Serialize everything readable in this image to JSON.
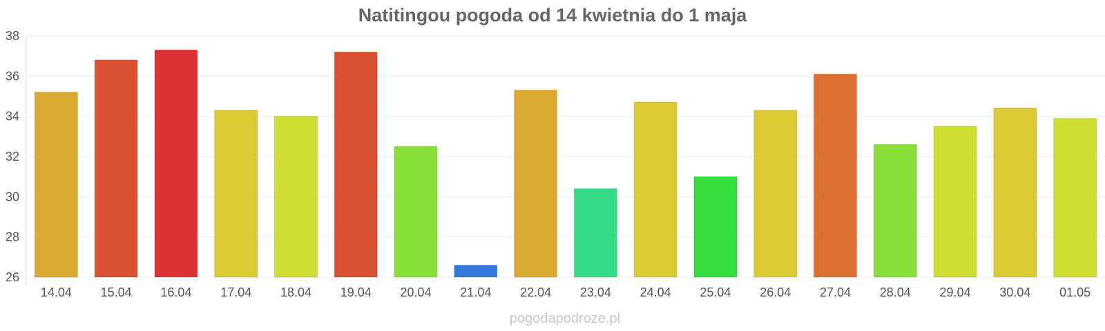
{
  "chart_data": {
    "type": "bar",
    "title": "Natitingou pogoda od 14 kwietnia do 1 maja",
    "xlabel": "",
    "ylabel": "",
    "ylim": [
      26,
      38
    ],
    "yticks": [
      "26",
      "28",
      "30",
      "32",
      "34",
      "36",
      "38"
    ],
    "categories": [
      "14.04",
      "15.04",
      "16.04",
      "17.04",
      "18.04",
      "19.04",
      "20.04",
      "21.04",
      "22.04",
      "23.04",
      "24.04",
      "25.04",
      "26.04",
      "27.04",
      "28.04",
      "29.04",
      "30.04",
      "01.05"
    ],
    "values": [
      35.2,
      36.8,
      37.3,
      34.3,
      34.0,
      37.2,
      32.5,
      26.6,
      35.3,
      30.4,
      34.7,
      31.0,
      34.3,
      36.1,
      32.6,
      33.5,
      34.4,
      33.9
    ],
    "colors": [
      "#dba834",
      "#dd5133",
      "#dc3233",
      "#dbc934",
      "#cddd33",
      "#dd5133",
      "#8ade38",
      "#3479dc",
      "#dba834",
      "#35dc88",
      "#dbc934",
      "#31dd38",
      "#dbc934",
      "#dd6f34",
      "#8ade38",
      "#cddd33",
      "#dbc934",
      "#cddd33"
    ],
    "grid": true,
    "legend": "none"
  },
  "footer": "pogodapodroze.pl"
}
